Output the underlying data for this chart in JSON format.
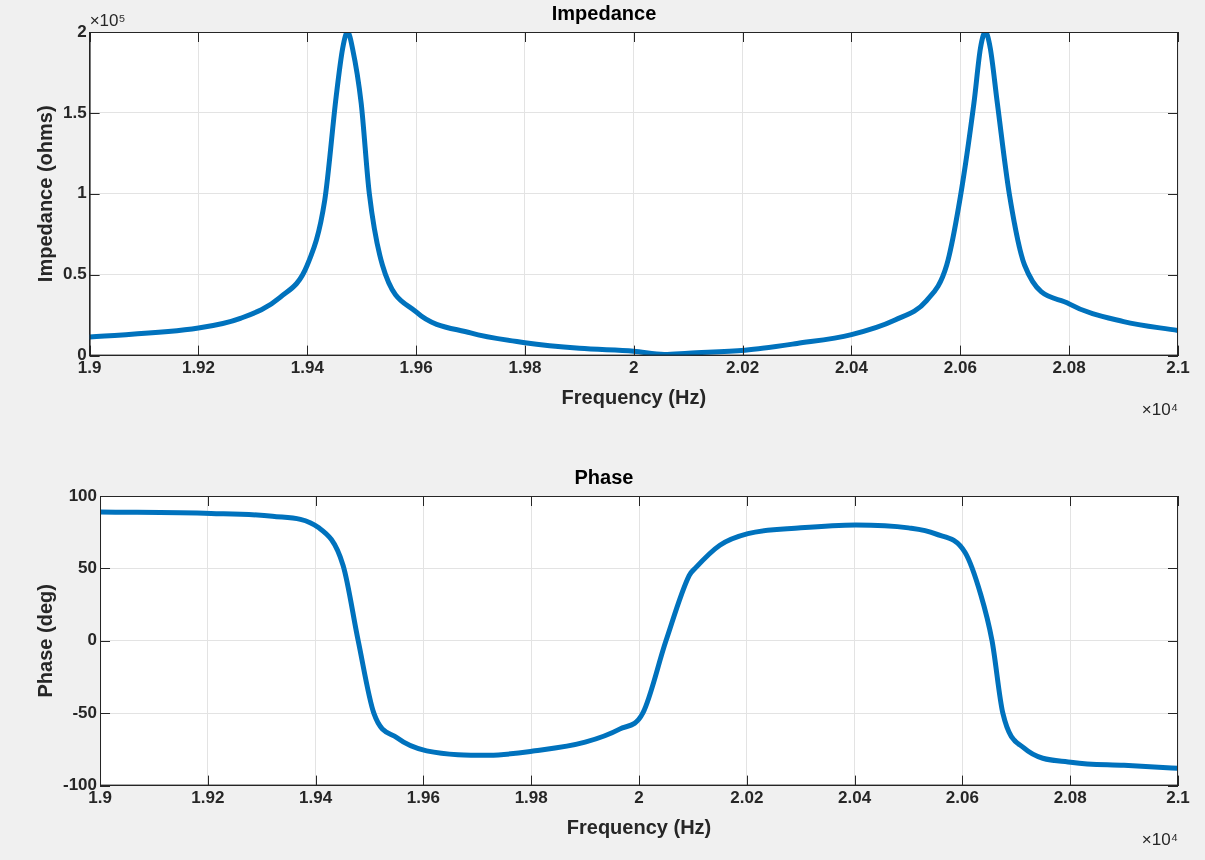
{
  "chart_data": [
    {
      "type": "line",
      "title": "Impedance",
      "xlabel": "Frequency (Hz)",
      "ylabel": "Impedance (ohms)",
      "color": "#0072bd",
      "grid": true,
      "x": [
        1.9,
        1.92,
        1.9277,
        1.935,
        1.94,
        1.9432,
        1.9453,
        1.9465,
        1.9474,
        1.9483,
        1.9499,
        1.9514,
        1.9538,
        1.96,
        1.97,
        1.98,
        1.99,
        2.0,
        2.0056,
        2.01,
        2.0204,
        2.03,
        2.04,
        2.048,
        2.0538,
        2.0575,
        2.06,
        2.0625,
        2.0637,
        2.0646,
        2.0655,
        2.0668,
        2.069,
        2.0718,
        2.08,
        2.09,
        2.1
      ],
      "values": [
        0.115,
        0.17,
        0.23,
        0.36,
        0.56,
        0.96,
        1.6,
        1.9,
        2.0,
        1.9,
        1.56,
        1.0,
        0.56,
        0.27,
        0.14,
        0.08,
        0.045,
        0.027,
        0.007,
        0.015,
        0.033,
        0.075,
        0.13,
        0.22,
        0.34,
        0.56,
        0.98,
        1.56,
        1.9,
        2.0,
        1.9,
        1.56,
        1.0,
        0.56,
        0.32,
        0.21,
        0.155
      ],
      "xlim": [
        1.9,
        2.1
      ],
      "ylim": [
        0,
        2
      ],
      "xticks": [
        1.9,
        1.92,
        1.94,
        1.96,
        1.98,
        2,
        2.02,
        2.04,
        2.06,
        2.08,
        2.1
      ],
      "yticks": [
        0,
        0.5,
        1,
        1.5,
        2
      ],
      "annotations": [
        "×10⁵",
        "×10⁴"
      ]
    },
    {
      "type": "line",
      "title": "Phase",
      "xlabel": "Frequency (Hz)",
      "ylabel": "Phase (deg)",
      "color": "#0072bd",
      "grid": true,
      "x": [
        1.9,
        1.9206,
        1.932,
        1.9406,
        1.9451,
        1.9479,
        1.9508,
        1.9551,
        1.9606,
        1.9722,
        1.9807,
        1.99,
        1.9964,
        2.0007,
        2.005,
        2.0093,
        2.0104,
        2.015,
        2.0202,
        2.03,
        2.0402,
        2.05,
        2.0549,
        2.0605,
        2.0634,
        2.0655,
        2.0675,
        2.0714,
        2.0805,
        2.09,
        2.1
      ],
      "values": [
        89,
        88,
        86,
        78,
        52,
        0,
        -50,
        -67,
        -76,
        -79,
        -76,
        -70,
        -61,
        -50,
        0,
        45,
        50,
        66,
        74,
        78,
        80,
        78,
        74,
        61,
        32,
        0,
        -50,
        -74,
        -84,
        -86,
        -88
      ],
      "xlim": [
        1.9,
        2.1
      ],
      "ylim": [
        -100,
        100
      ],
      "xticks": [
        1.9,
        1.92,
        1.94,
        1.96,
        1.98,
        2,
        2.02,
        2.04,
        2.06,
        2.08,
        2.1
      ],
      "yticks": [
        -100,
        -50,
        0,
        50,
        100
      ],
      "annotations": [
        "×10⁴"
      ]
    }
  ]
}
